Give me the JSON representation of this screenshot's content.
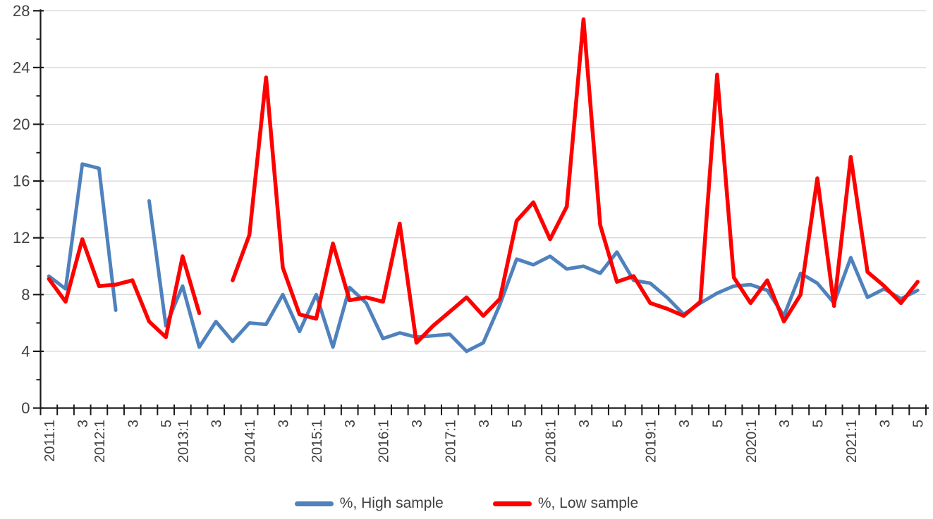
{
  "chart_data": {
    "type": "line",
    "title": "",
    "xlabel": "",
    "ylabel": "",
    "grid": true,
    "legend_position": "bottom",
    "categories": [
      "2011:1",
      "2011:2",
      "2011:3",
      "2012:1",
      "2012:2",
      "2012:3",
      "2012:4",
      "2012:5",
      "2013:1",
      "2013:2",
      "2013:3",
      "2013:4",
      "2014:1",
      "2014:2",
      "2014:3",
      "2014:4",
      "2015:1",
      "2015:2",
      "2015:3",
      "2015:4",
      "2016:1",
      "2016:2",
      "2016:3",
      "2016:4",
      "2017:1",
      "2017:2",
      "2017:3",
      "2017:4",
      "2017:5",
      "2017:6",
      "2018:1",
      "2018:2",
      "2018:3",
      "2018:4",
      "2018:5",
      "2018:6",
      "2019:1",
      "2019:2",
      "2019:3",
      "2019:4",
      "2019:5",
      "2019:6",
      "2020:1",
      "2020:2",
      "2020:3",
      "2020:4",
      "2020:5",
      "2020:6",
      "2021:1",
      "2021:2",
      "2021:3",
      "2021:4",
      "2021:5"
    ],
    "x_tick_labels": [
      "2011:1",
      "",
      "3",
      "2012:1",
      "",
      "3",
      "",
      "5",
      "2013:1",
      "",
      "3",
      "",
      "2014:1",
      "",
      "3",
      "",
      "2015:1",
      "",
      "3",
      "",
      "2016:1",
      "",
      "3",
      "",
      "2017:1",
      "",
      "3",
      "",
      "5",
      "",
      "2018:1",
      "",
      "3",
      "",
      "5",
      "",
      "2019:1",
      "",
      "3",
      "",
      "5",
      "",
      "2020:1",
      "",
      "3",
      "",
      "5",
      "",
      "2021:1",
      "",
      "3",
      "",
      "5"
    ],
    "y_axis": {
      "min": 0,
      "max": 28,
      "major_step": 4,
      "minor_step": 2,
      "tick_labels": [
        "0",
        "4",
        "8",
        "12",
        "16",
        "20",
        "24",
        "28"
      ]
    },
    "series": [
      {
        "key": "high-sample",
        "name": "%, High sample",
        "color": "#4F81BD",
        "stroke_width": 5,
        "values": [
          9.3,
          8.4,
          17.2,
          16.9,
          6.9,
          null,
          14.6,
          5.8,
          8.6,
          4.3,
          6.1,
          4.7,
          6.0,
          5.9,
          8.0,
          5.4,
          8.0,
          4.3,
          8.5,
          7.4,
          4.9,
          5.3,
          5.0,
          5.1,
          5.2,
          4.0,
          4.6,
          7.3,
          10.5,
          10.1,
          10.7,
          9.8,
          10.0,
          9.5,
          11.0,
          9.0,
          8.8,
          7.8,
          6.6,
          7.4,
          8.1,
          8.6,
          8.7,
          8.3,
          6.5,
          9.5,
          8.8,
          7.4,
          10.6,
          7.8,
          8.4,
          7.7,
          8.3
        ]
      },
      {
        "key": "low-sample",
        "name": "%, Low sample",
        "color": "#FE0000",
        "stroke_width": 5.5,
        "values": [
          9.1,
          7.5,
          11.9,
          8.6,
          8.7,
          9.0,
          6.1,
          5.0,
          10.7,
          6.7,
          null,
          9.0,
          12.2,
          23.3,
          9.9,
          6.6,
          6.3,
          11.6,
          7.6,
          7.8,
          7.5,
          13.0,
          4.6,
          5.8,
          6.8,
          7.8,
          6.5,
          7.7,
          13.2,
          14.5,
          11.9,
          14.2,
          27.4,
          12.9,
          8.9,
          9.3,
          7.4,
          7.0,
          6.5,
          7.5,
          23.5,
          9.2,
          7.4,
          9.0,
          6.1,
          8.0,
          16.2,
          7.2,
          17.7,
          9.6,
          8.6,
          7.4,
          8.9
        ]
      }
    ]
  },
  "colors": {
    "background": "#ffffff",
    "gridline": "#d6d6d6",
    "axis": "#1a1a1a",
    "tick_label": "#404040",
    "legend_text": "#404040"
  }
}
